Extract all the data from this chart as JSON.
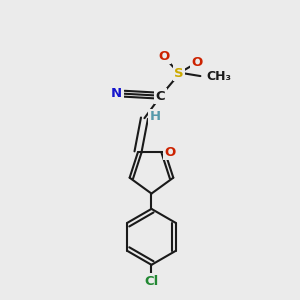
{
  "background_color": "#ebebeb",
  "bond_color": "#1a1a1a",
  "bond_width": 1.5,
  "atom_colors": {
    "C": "#1a1a1a",
    "N": "#1515cc",
    "O": "#cc2200",
    "S": "#ccaa00",
    "Cl": "#228833",
    "H": "#5599aa"
  },
  "figsize": [
    3.0,
    3.0
  ],
  "dpi": 100
}
